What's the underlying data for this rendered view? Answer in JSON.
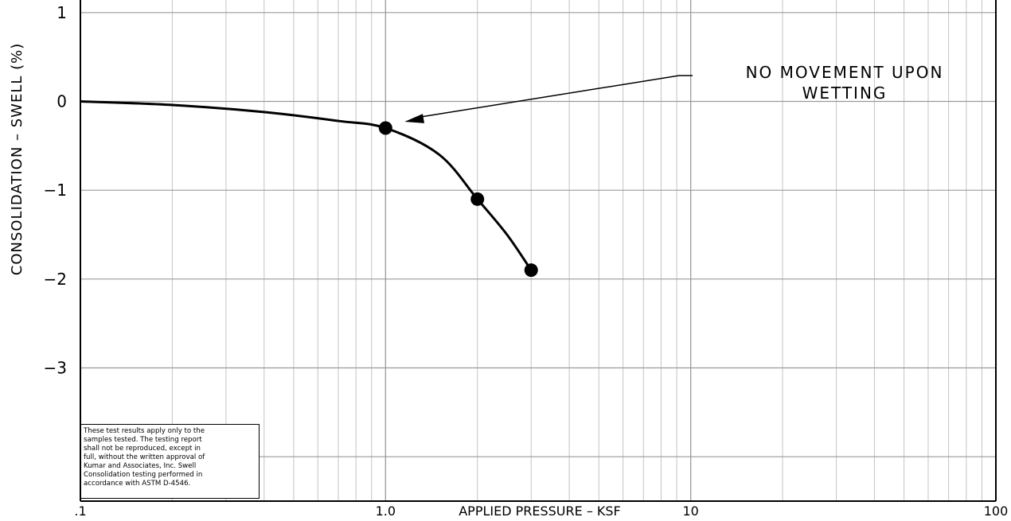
{
  "chart_data": {
    "type": "line",
    "xscale": "log",
    "xlim": [
      0.1,
      100
    ],
    "ylim": [
      -4.5,
      1.5
    ],
    "grid": true,
    "x_tick_labels": [
      {
        "value": 0.1,
        "label": ".1"
      },
      {
        "value": 1,
        "label": "1.0"
      },
      {
        "value": 10,
        "label": "10"
      },
      {
        "value": 100,
        "label": "100"
      }
    ],
    "y_tick_labels": [
      {
        "value": 1,
        "label": "1"
      },
      {
        "value": 0,
        "label": "0"
      },
      {
        "value": -1,
        "label": "−1"
      },
      {
        "value": -2,
        "label": "−2"
      },
      {
        "value": -3,
        "label": "−3"
      }
    ],
    "xlabel": "APPLIED PRESSURE – KSF",
    "ylabel": "CONSOLIDATION – SWELL     (%)",
    "curve": {
      "x": [
        0.1,
        0.2,
        0.4,
        0.7,
        1.0,
        1.5,
        2.0,
        2.5,
        3.0
      ],
      "y": [
        0.0,
        -0.04,
        -0.12,
        -0.22,
        -0.3,
        -0.6,
        -1.1,
        -1.5,
        -1.9
      ]
    },
    "points": {
      "x": [
        1.0,
        2.0,
        3.0
      ],
      "y": [
        -0.3,
        -1.1,
        -1.9
      ]
    },
    "annotation": {
      "lines": [
        "NO MOVEMENT UPON",
        "WETTING"
      ],
      "target": {
        "x": 1.0,
        "y": -0.3
      }
    },
    "disclaimer": [
      "These test results apply only to the",
      "samples tested. The testing report",
      "shall not be reproduced, except in",
      "full, without the written approval of",
      "Kumar and Associates, Inc. Swell",
      "Consolidation testing performed in",
      "accordance with ASTM D-4546."
    ]
  }
}
